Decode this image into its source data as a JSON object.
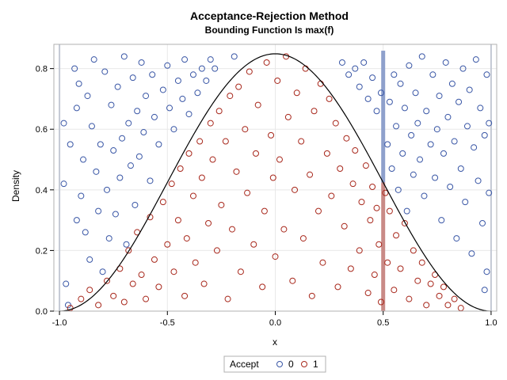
{
  "chart_data": {
    "type": "scatter",
    "title": "Acceptance-Rejection Method",
    "subtitle": "Bounding Function Is max(f)",
    "xlabel": "x",
    "ylabel": "Density",
    "xlim": [
      -1.0,
      1.0
    ],
    "ylim": [
      0.0,
      0.85
    ],
    "xticks": [
      "-1.0",
      "-0.5",
      "0.0",
      "0.5",
      "1.0"
    ],
    "yticks": [
      "0.0",
      "0.2",
      "0.4",
      "0.6",
      "0.8"
    ],
    "grid": true,
    "legend": {
      "title": "Accept",
      "placement": "bottom",
      "entries": [
        "0",
        "1"
      ]
    },
    "colors": {
      "accept_0": "#3a57a6",
      "accept_1": "#a8281c",
      "curve": "#000000",
      "band_upper": "#8ea0cc",
      "band_lower": "#c98a86"
    },
    "curve": {
      "type": "density",
      "formula": "0.848826 * cos(pi*x/2)^2",
      "max": 0.848826
    },
    "highlight_x": 0.5,
    "series": [
      {
        "name": "0",
        "points": [
          [
            -0.98,
            0.42
          ],
          [
            -0.98,
            0.62
          ],
          [
            -0.97,
            0.09
          ],
          [
            -0.96,
            0.02
          ],
          [
            -0.95,
            0.55
          ],
          [
            -0.93,
            0.8
          ],
          [
            -0.92,
            0.3
          ],
          [
            -0.92,
            0.67
          ],
          [
            -0.91,
            0.75
          ],
          [
            -0.9,
            0.38
          ],
          [
            -0.89,
            0.5
          ],
          [
            -0.88,
            0.26
          ],
          [
            -0.87,
            0.71
          ],
          [
            -0.86,
            0.17
          ],
          [
            -0.85,
            0.61
          ],
          [
            -0.84,
            0.83
          ],
          [
            -0.83,
            0.46
          ],
          [
            -0.82,
            0.33
          ],
          [
            -0.81,
            0.55
          ],
          [
            -0.8,
            0.13
          ],
          [
            -0.79,
            0.79
          ],
          [
            -0.78,
            0.4
          ],
          [
            -0.77,
            0.24
          ],
          [
            -0.76,
            0.68
          ],
          [
            -0.75,
            0.53
          ],
          [
            -0.74,
            0.32
          ],
          [
            -0.73,
            0.74
          ],
          [
            -0.72,
            0.44
          ],
          [
            -0.71,
            0.57
          ],
          [
            -0.7,
            0.84
          ],
          [
            -0.69,
            0.22
          ],
          [
            -0.68,
            0.62
          ],
          [
            -0.67,
            0.48
          ],
          [
            -0.66,
            0.77
          ],
          [
            -0.65,
            0.35
          ],
          [
            -0.64,
            0.66
          ],
          [
            -0.63,
            0.51
          ],
          [
            -0.62,
            0.82
          ],
          [
            -0.61,
            0.59
          ],
          [
            -0.6,
            0.71
          ],
          [
            -0.58,
            0.43
          ],
          [
            -0.57,
            0.78
          ],
          [
            -0.56,
            0.64
          ],
          [
            -0.54,
            0.55
          ],
          [
            -0.52,
            0.73
          ],
          [
            -0.5,
            0.81
          ],
          [
            -0.49,
            0.67
          ],
          [
            -0.47,
            0.6
          ],
          [
            -0.45,
            0.76
          ],
          [
            -0.43,
            0.7
          ],
          [
            -0.42,
            0.83
          ],
          [
            -0.4,
            0.65
          ],
          [
            -0.38,
            0.78
          ],
          [
            -0.36,
            0.72
          ],
          [
            -0.34,
            0.8
          ],
          [
            -0.32,
            0.76
          ],
          [
            -0.3,
            0.83
          ],
          [
            -0.28,
            0.8
          ],
          [
            -0.19,
            0.84
          ],
          [
            0.31,
            0.82
          ],
          [
            0.34,
            0.78
          ],
          [
            0.37,
            0.8
          ],
          [
            0.39,
            0.74
          ],
          [
            0.41,
            0.82
          ],
          [
            0.43,
            0.7
          ],
          [
            0.45,
            0.77
          ],
          [
            0.47,
            0.66
          ],
          [
            0.49,
            0.72
          ],
          [
            0.52,
            0.55
          ],
          [
            0.53,
            0.69
          ],
          [
            0.54,
            0.47
          ],
          [
            0.55,
            0.78
          ],
          [
            0.56,
            0.61
          ],
          [
            0.57,
            0.4
          ],
          [
            0.58,
            0.75
          ],
          [
            0.59,
            0.52
          ],
          [
            0.6,
            0.67
          ],
          [
            0.61,
            0.33
          ],
          [
            0.62,
            0.81
          ],
          [
            0.63,
            0.58
          ],
          [
            0.64,
            0.45
          ],
          [
            0.65,
            0.72
          ],
          [
            0.66,
            0.62
          ],
          [
            0.67,
            0.5
          ],
          [
            0.68,
            0.84
          ],
          [
            0.69,
            0.38
          ],
          [
            0.7,
            0.66
          ],
          [
            0.72,
            0.55
          ],
          [
            0.73,
            0.78
          ],
          [
            0.74,
            0.44
          ],
          [
            0.75,
            0.6
          ],
          [
            0.76,
            0.71
          ],
          [
            0.77,
            0.3
          ],
          [
            0.78,
            0.52
          ],
          [
            0.79,
            0.82
          ],
          [
            0.8,
            0.64
          ],
          [
            0.81,
            0.41
          ],
          [
            0.82,
            0.75
          ],
          [
            0.83,
            0.56
          ],
          [
            0.84,
            0.24
          ],
          [
            0.85,
            0.69
          ],
          [
            0.86,
            0.47
          ],
          [
            0.87,
            0.8
          ],
          [
            0.88,
            0.36
          ],
          [
            0.89,
            0.61
          ],
          [
            0.9,
            0.73
          ],
          [
            0.91,
            0.19
          ],
          [
            0.92,
            0.54
          ],
          [
            0.93,
            0.83
          ],
          [
            0.94,
            0.43
          ],
          [
            0.95,
            0.67
          ],
          [
            0.96,
            0.29
          ],
          [
            0.97,
            0.58
          ],
          [
            0.98,
            0.13
          ],
          [
            0.98,
            0.78
          ],
          [
            0.99,
            0.39
          ],
          [
            0.99,
            0.62
          ],
          [
            0.97,
            0.07
          ]
        ]
      },
      {
        "name": "1",
        "points": [
          [
            -0.95,
            0.01
          ],
          [
            -0.9,
            0.04
          ],
          [
            -0.86,
            0.07
          ],
          [
            -0.82,
            0.02
          ],
          [
            -0.78,
            0.1
          ],
          [
            -0.75,
            0.05
          ],
          [
            -0.72,
            0.14
          ],
          [
            -0.7,
            0.03
          ],
          [
            -0.68,
            0.2
          ],
          [
            -0.66,
            0.09
          ],
          [
            -0.64,
            0.26
          ],
          [
            -0.62,
            0.12
          ],
          [
            -0.6,
            0.04
          ],
          [
            -0.58,
            0.31
          ],
          [
            -0.56,
            0.17
          ],
          [
            -0.54,
            0.08
          ],
          [
            -0.52,
            0.36
          ],
          [
            -0.5,
            0.22
          ],
          [
            -0.48,
            0.42
          ],
          [
            -0.47,
            0.13
          ],
          [
            -0.45,
            0.3
          ],
          [
            -0.44,
            0.47
          ],
          [
            -0.42,
            0.05
          ],
          [
            -0.41,
            0.24
          ],
          [
            -0.4,
            0.52
          ],
          [
            -0.38,
            0.38
          ],
          [
            -0.37,
            0.16
          ],
          [
            -0.35,
            0.56
          ],
          [
            -0.34,
            0.44
          ],
          [
            -0.33,
            0.09
          ],
          [
            -0.31,
            0.29
          ],
          [
            -0.3,
            0.62
          ],
          [
            -0.29,
            0.5
          ],
          [
            -0.27,
            0.2
          ],
          [
            -0.26,
            0.66
          ],
          [
            -0.25,
            0.35
          ],
          [
            -0.23,
            0.56
          ],
          [
            -0.22,
            0.04
          ],
          [
            -0.21,
            0.71
          ],
          [
            -0.2,
            0.27
          ],
          [
            -0.18,
            0.46
          ],
          [
            -0.17,
            0.74
          ],
          [
            -0.16,
            0.13
          ],
          [
            -0.14,
            0.6
          ],
          [
            -0.13,
            0.39
          ],
          [
            -0.12,
            0.79
          ],
          [
            -0.1,
            0.22
          ],
          [
            -0.09,
            0.52
          ],
          [
            -0.08,
            0.68
          ],
          [
            -0.06,
            0.08
          ],
          [
            -0.05,
            0.33
          ],
          [
            -0.04,
            0.82
          ],
          [
            -0.02,
            0.58
          ],
          [
            -0.01,
            0.44
          ],
          [
            0.0,
            0.18
          ],
          [
            0.01,
            0.76
          ],
          [
            0.02,
            0.5
          ],
          [
            0.04,
            0.27
          ],
          [
            0.05,
            0.84
          ],
          [
            0.06,
            0.64
          ],
          [
            0.08,
            0.1
          ],
          [
            0.09,
            0.4
          ],
          [
            0.1,
            0.72
          ],
          [
            0.12,
            0.56
          ],
          [
            0.13,
            0.24
          ],
          [
            0.14,
            0.8
          ],
          [
            0.16,
            0.45
          ],
          [
            0.17,
            0.05
          ],
          [
            0.18,
            0.66
          ],
          [
            0.2,
            0.33
          ],
          [
            0.21,
            0.75
          ],
          [
            0.22,
            0.16
          ],
          [
            0.24,
            0.52
          ],
          [
            0.25,
            0.7
          ],
          [
            0.26,
            0.38
          ],
          [
            0.28,
            0.62
          ],
          [
            0.29,
            0.08
          ],
          [
            0.3,
            0.47
          ],
          [
            0.32,
            0.28
          ],
          [
            0.33,
            0.57
          ],
          [
            0.35,
            0.14
          ],
          [
            0.36,
            0.42
          ],
          [
            0.37,
            0.53
          ],
          [
            0.39,
            0.2
          ],
          [
            0.4,
            0.36
          ],
          [
            0.42,
            0.48
          ],
          [
            0.43,
            0.06
          ],
          [
            0.44,
            0.3
          ],
          [
            0.45,
            0.41
          ],
          [
            0.46,
            0.12
          ],
          [
            0.47,
            0.34
          ],
          [
            0.48,
            0.22
          ],
          [
            0.49,
            0.03
          ],
          [
            0.51,
            0.39
          ],
          [
            0.52,
            0.16
          ],
          [
            0.53,
            0.33
          ],
          [
            0.55,
            0.07
          ],
          [
            0.56,
            0.25
          ],
          [
            0.58,
            0.14
          ],
          [
            0.6,
            0.29
          ],
          [
            0.62,
            0.04
          ],
          [
            0.64,
            0.2
          ],
          [
            0.66,
            0.1
          ],
          [
            0.68,
            0.16
          ],
          [
            0.7,
            0.02
          ],
          [
            0.72,
            0.09
          ],
          [
            0.74,
            0.12
          ],
          [
            0.76,
            0.05
          ],
          [
            0.78,
            0.08
          ],
          [
            0.8,
            0.02
          ],
          [
            0.83,
            0.04
          ],
          [
            0.86,
            0.01
          ]
        ]
      }
    ]
  }
}
